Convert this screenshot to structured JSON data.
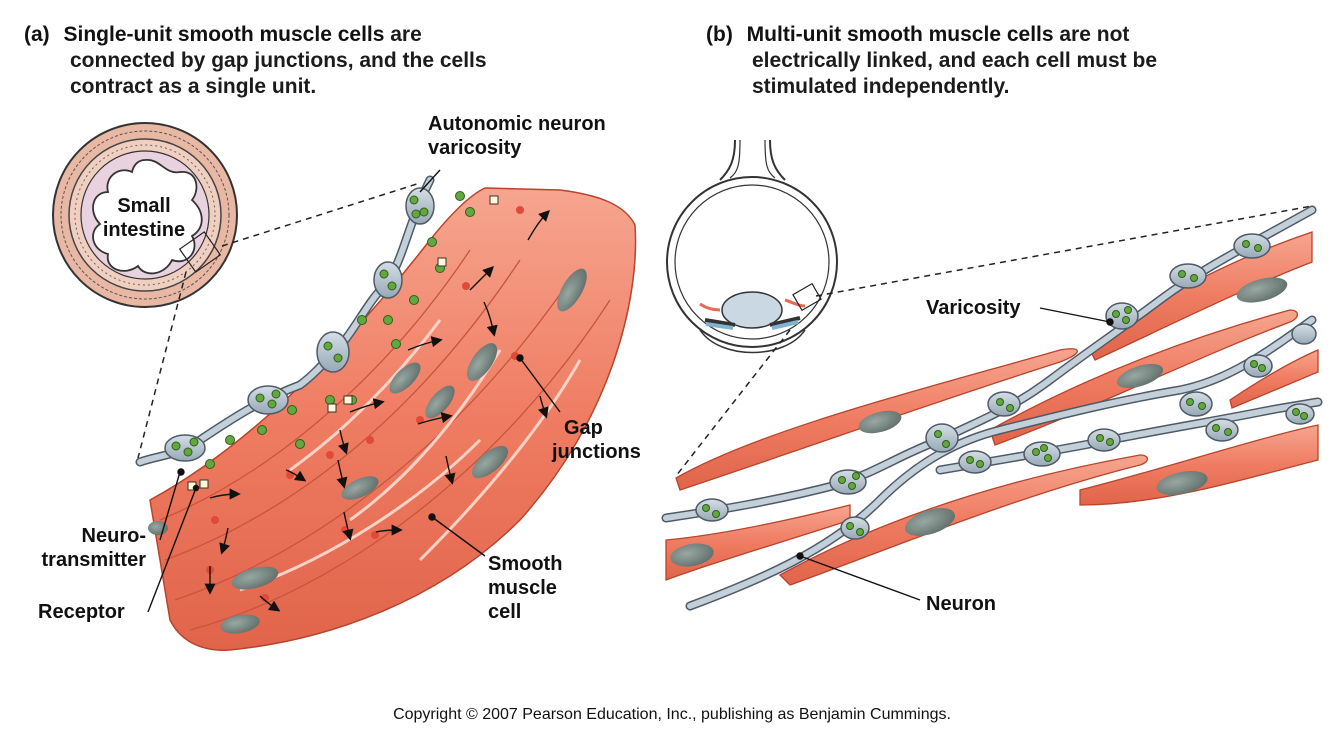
{
  "panel_a": {
    "letter": "(a)",
    "lead": "Single-unit smooth muscle cells",
    "rest_line1": " are",
    "line2": "connected by gap junctions, and the cells",
    "line3": "contract as a single unit."
  },
  "panel_b": {
    "letter": "(b)",
    "lead": "Multi-unit smooth muscle cells",
    "rest_line1": " are not",
    "line2": "electrically linked, and each cell must be",
    "line3": "stimulated independently."
  },
  "labels": {
    "small_intestine_1": "Small",
    "small_intestine_2": "intestine",
    "autonomic_1": "Autonomic neuron",
    "autonomic_2": "varicosity",
    "gap_1": "Gap",
    "gap_2": "junctions",
    "neuro_1": "Neuro-",
    "neuro_2": "transmitter",
    "receptor": "Receptor",
    "smooth_1": "Smooth",
    "smooth_2": "muscle",
    "smooth_3": "cell",
    "varicosity": "Varicosity",
    "neuron": "Neuron"
  },
  "colors": {
    "muscle": "#f0836a",
    "muscle_dark": "#d9533a",
    "muscle_light": "#f7b09c",
    "nucleus": "#6f7f7a",
    "neuron": "#b9c6d1",
    "neuron_outline": "#4e5a66",
    "vesicle": "#62a83f",
    "intestine_wall": "#e5b7a4",
    "intestine_lumen": "#ead3df"
  },
  "copyright": "Copyright © 2007 Pearson Education, Inc., publishing as Benjamin Cummings."
}
